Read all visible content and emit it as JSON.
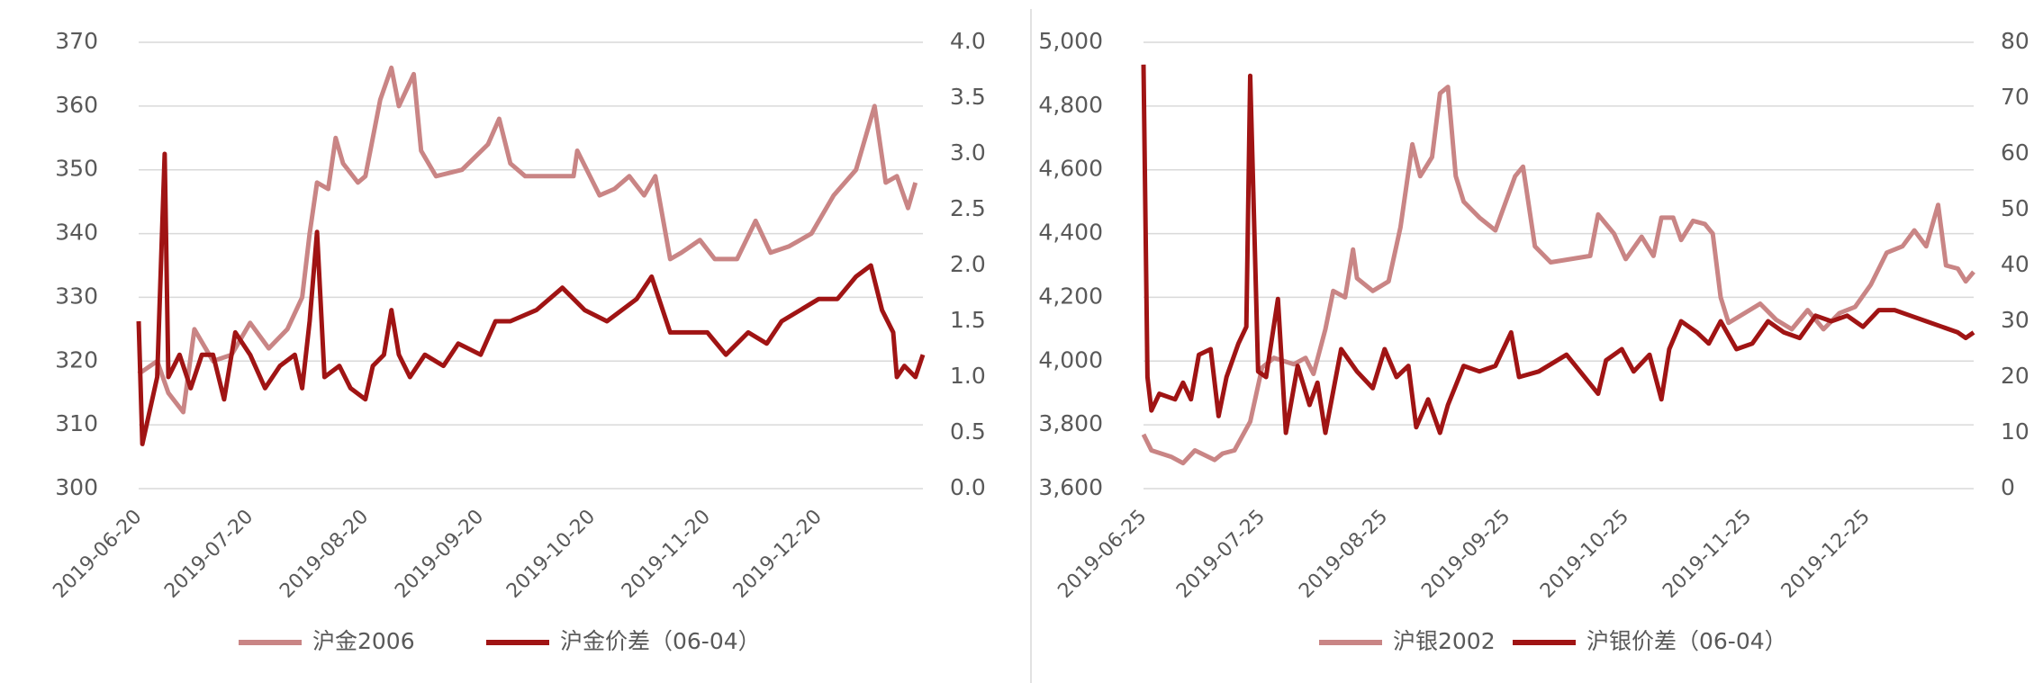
{
  "chart_data": [
    {
      "type": "line",
      "xlim": [
        "2019-06-20",
        "2020-01-17"
      ],
      "xticks": [
        "2019-06-20",
        "2019-07-20",
        "2019-08-20",
        "2019-09-20",
        "2019-10-20",
        "2019-11-20",
        "2019-12-20"
      ],
      "ylim": [
        300,
        370
      ],
      "yticks": [
        300,
        310,
        320,
        330,
        340,
        350,
        360,
        370
      ],
      "y2lim": [
        0,
        4
      ],
      "y2ticks": [
        {
          "value": 0,
          "label": "0.0"
        },
        {
          "value": 0.5,
          "label": "0.5"
        },
        {
          "value": 1,
          "label": "1.0"
        },
        {
          "value": 1.5,
          "label": "1.5"
        },
        {
          "value": 2,
          "label": "2.0"
        },
        {
          "value": 2.5,
          "label": "2.5"
        },
        {
          "value": 3,
          "label": "3.0"
        },
        {
          "value": 3.5,
          "label": "3.5"
        },
        {
          "value": 4,
          "label": "4.0"
        }
      ],
      "grid": true,
      "legend": "bottom",
      "series": [
        {
          "name": "沪金2006",
          "color": "#c98585",
          "x": [
            "2019-06-20",
            "2019-06-25",
            "2019-06-28",
            "2019-07-02",
            "2019-07-05",
            "2019-07-10",
            "2019-07-15",
            "2019-07-20",
            "2019-07-25",
            "2019-07-30",
            "2019-08-03",
            "2019-08-05",
            "2019-08-07",
            "2019-08-10",
            "2019-08-12",
            "2019-08-14",
            "2019-08-18",
            "2019-08-20",
            "2019-08-24",
            "2019-08-27",
            "2019-08-29",
            "2019-09-02",
            "2019-09-04",
            "2019-09-08",
            "2019-09-15",
            "2019-09-22",
            "2019-09-25",
            "2019-09-28",
            "2019-10-02",
            "2019-10-15",
            "2019-10-16",
            "2019-10-22",
            "2019-10-26",
            "2019-10-30",
            "2019-11-03",
            "2019-11-06",
            "2019-11-10",
            "2019-11-13",
            "2019-11-18",
            "2019-11-22",
            "2019-11-28",
            "2019-12-03",
            "2019-12-07",
            "2019-12-12",
            "2019-12-18",
            "2019-12-24",
            "2019-12-30",
            "2020-01-04",
            "2020-01-07",
            "2020-01-10",
            "2020-01-13",
            "2020-01-15"
          ],
          "values": [
            318,
            320,
            315,
            312,
            325,
            320,
            321,
            326,
            322,
            325,
            330,
            340,
            348,
            347,
            355,
            351,
            348,
            349,
            361,
            366,
            360,
            365,
            353,
            349,
            350,
            354,
            358,
            351,
            349,
            349,
            353,
            346,
            347,
            349,
            346,
            349,
            336,
            337,
            339,
            336,
            336,
            342,
            337,
            338,
            340,
            346,
            350,
            360,
            348,
            349,
            344,
            348
          ]
        },
        {
          "name": "沪金价差（06-04）",
          "color": "#a01414",
          "axis": "y2",
          "x": [
            "2019-06-20",
            "2019-06-21",
            "2019-06-25",
            "2019-06-27",
            "2019-06-28",
            "2019-07-01",
            "2019-07-04",
            "2019-07-07",
            "2019-07-10",
            "2019-07-13",
            "2019-07-16",
            "2019-07-20",
            "2019-07-24",
            "2019-07-28",
            "2019-08-01",
            "2019-08-03",
            "2019-08-05",
            "2019-08-07",
            "2019-08-09",
            "2019-08-13",
            "2019-08-16",
            "2019-08-20",
            "2019-08-22",
            "2019-08-25",
            "2019-08-27",
            "2019-08-29",
            "2019-09-01",
            "2019-09-05",
            "2019-09-10",
            "2019-09-14",
            "2019-09-20",
            "2019-09-24",
            "2019-09-28",
            "2019-10-05",
            "2019-10-12",
            "2019-10-18",
            "2019-10-24",
            "2019-10-28",
            "2019-11-01",
            "2019-11-05",
            "2019-11-10",
            "2019-11-15",
            "2019-11-20",
            "2019-11-25",
            "2019-12-01",
            "2019-12-06",
            "2019-12-10",
            "2019-12-15",
            "2019-12-20",
            "2019-12-25",
            "2019-12-30",
            "2020-01-03",
            "2020-01-06",
            "2020-01-09",
            "2020-01-10",
            "2020-01-12",
            "2020-01-15",
            "2020-01-17"
          ],
          "values": [
            1.5,
            0.4,
            1.0,
            3.0,
            1.0,
            1.2,
            0.9,
            1.2,
            1.2,
            0.8,
            1.4,
            1.2,
            0.9,
            1.1,
            1.2,
            0.9,
            1.5,
            2.3,
            1.0,
            1.1,
            0.9,
            0.8,
            1.1,
            1.2,
            1.6,
            1.2,
            1.0,
            1.2,
            1.1,
            1.3,
            1.2,
            1.5,
            1.5,
            1.6,
            1.8,
            1.6,
            1.5,
            1.6,
            1.7,
            1.9,
            1.4,
            1.4,
            1.4,
            1.2,
            1.4,
            1.3,
            1.5,
            1.6,
            1.7,
            1.7,
            1.9,
            2.0,
            1.6,
            1.4,
            1.0,
            1.1,
            1.0,
            1.2
          ]
        }
      ]
    },
    {
      "type": "line",
      "xlim": [
        "2019-06-25",
        "2020-01-21"
      ],
      "xticks": [
        "2019-06-25",
        "2019-07-25",
        "2019-08-25",
        "2019-09-25",
        "2019-10-25",
        "2019-11-25",
        "2019-12-25"
      ],
      "ylim": [
        3600,
        5000
      ],
      "yticks": [
        {
          "value": 3600,
          "label": "3,600"
        },
        {
          "value": 3800,
          "label": "3,800"
        },
        {
          "value": 4000,
          "label": "4,000"
        },
        {
          "value": 4200,
          "label": "4,200"
        },
        {
          "value": 4400,
          "label": "4,400"
        },
        {
          "value": 4600,
          "label": "4,600"
        },
        {
          "value": 4800,
          "label": "4,800"
        },
        {
          "value": 5000,
          "label": "5,000"
        }
      ],
      "y2lim": [
        0,
        80
      ],
      "y2ticks": [
        0,
        10,
        20,
        30,
        40,
        50,
        60,
        70,
        80
      ],
      "grid": true,
      "legend": "bottom",
      "series": [
        {
          "name": "沪银2002",
          "color": "#c98585",
          "x": [
            "2019-06-25",
            "2019-06-27",
            "2019-07-02",
            "2019-07-05",
            "2019-07-08",
            "2019-07-13",
            "2019-07-15",
            "2019-07-18",
            "2019-07-22",
            "2019-07-25",
            "2019-07-28",
            "2019-08-02",
            "2019-08-05",
            "2019-08-07",
            "2019-08-10",
            "2019-08-12",
            "2019-08-15",
            "2019-08-17",
            "2019-08-18",
            "2019-08-22",
            "2019-08-26",
            "2019-08-29",
            "2019-09-01",
            "2019-09-03",
            "2019-09-06",
            "2019-09-08",
            "2019-09-10",
            "2019-09-12",
            "2019-09-14",
            "2019-09-18",
            "2019-09-22",
            "2019-09-27",
            "2019-09-29",
            "2019-10-02",
            "2019-10-06",
            "2019-10-16",
            "2019-10-18",
            "2019-10-22",
            "2019-10-25",
            "2019-10-29",
            "2019-11-01",
            "2019-11-03",
            "2019-11-06",
            "2019-11-08",
            "2019-11-11",
            "2019-11-14",
            "2019-11-16",
            "2019-11-18",
            "2019-11-20",
            "2019-11-24",
            "2019-11-28",
            "2019-12-02",
            "2019-12-06",
            "2019-12-10",
            "2019-12-14",
            "2019-12-18",
            "2019-12-22",
            "2019-12-26",
            "2019-12-30",
            "2020-01-03",
            "2020-01-06",
            "2020-01-09",
            "2020-01-12",
            "2020-01-14",
            "2020-01-17",
            "2020-01-19",
            "2020-01-21"
          ],
          "values": [
            3770,
            3720,
            3700,
            3680,
            3720,
            3690,
            3710,
            3720,
            3810,
            3980,
            4010,
            3990,
            4010,
            3960,
            4100,
            4220,
            4200,
            4350,
            4260,
            4220,
            4250,
            4420,
            4680,
            4580,
            4640,
            4840,
            4860,
            4580,
            4500,
            4450,
            4410,
            4580,
            4610,
            4360,
            4310,
            4330,
            4460,
            4400,
            4320,
            4390,
            4330,
            4450,
            4450,
            4380,
            4440,
            4430,
            4400,
            4200,
            4120,
            4150,
            4180,
            4130,
            4100,
            4160,
            4100,
            4150,
            4170,
            4240,
            4340,
            4360,
            4410,
            4360,
            4490,
            4300,
            4290,
            4250,
            4280
          ]
        },
        {
          "name": "沪银价差（06-04）",
          "color": "#a01414",
          "axis": "y2",
          "x": [
            "2019-06-25",
            "2019-06-26",
            "2019-06-27",
            "2019-06-29",
            "2019-07-03",
            "2019-07-05",
            "2019-07-07",
            "2019-07-09",
            "2019-07-12",
            "2019-07-14",
            "2019-07-16",
            "2019-07-19",
            "2019-07-21",
            "2019-07-22",
            "2019-07-24",
            "2019-07-26",
            "2019-07-29",
            "2019-07-31",
            "2019-08-03",
            "2019-08-06",
            "2019-08-08",
            "2019-08-10",
            "2019-08-14",
            "2019-08-18",
            "2019-08-22",
            "2019-08-25",
            "2019-08-28",
            "2019-08-31",
            "2019-09-02",
            "2019-09-05",
            "2019-09-08",
            "2019-09-10",
            "2019-09-14",
            "2019-09-18",
            "2019-09-22",
            "2019-09-26",
            "2019-09-28",
            "2019-10-03",
            "2019-10-10",
            "2019-10-18",
            "2019-10-20",
            "2019-10-24",
            "2019-10-27",
            "2019-10-31",
            "2019-11-03",
            "2019-11-05",
            "2019-11-08",
            "2019-11-12",
            "2019-11-15",
            "2019-11-18",
            "2019-11-22",
            "2019-11-26",
            "2019-11-30",
            "2019-12-04",
            "2019-12-08",
            "2019-12-12",
            "2019-12-16",
            "2019-12-20",
            "2019-12-24",
            "2019-12-28",
            "2020-01-01",
            "2020-01-05",
            "2020-01-09",
            "2020-01-13",
            "2020-01-17",
            "2020-01-19",
            "2020-01-21"
          ],
          "values": [
            76,
            20,
            14,
            17,
            16,
            19,
            16,
            24,
            25,
            13,
            20,
            26,
            29,
            74,
            21,
            20,
            34,
            10,
            22,
            15,
            19,
            10,
            25,
            21,
            18,
            25,
            20,
            22,
            11,
            16,
            10,
            15,
            22,
            21,
            22,
            28,
            20,
            21,
            24,
            17,
            23,
            25,
            21,
            24,
            16,
            25,
            30,
            28,
            26,
            30,
            25,
            26,
            30,
            28,
            27,
            31,
            30,
            31,
            29,
            32,
            32,
            31,
            30,
            29,
            28,
            27,
            28
          ]
        }
      ]
    }
  ]
}
